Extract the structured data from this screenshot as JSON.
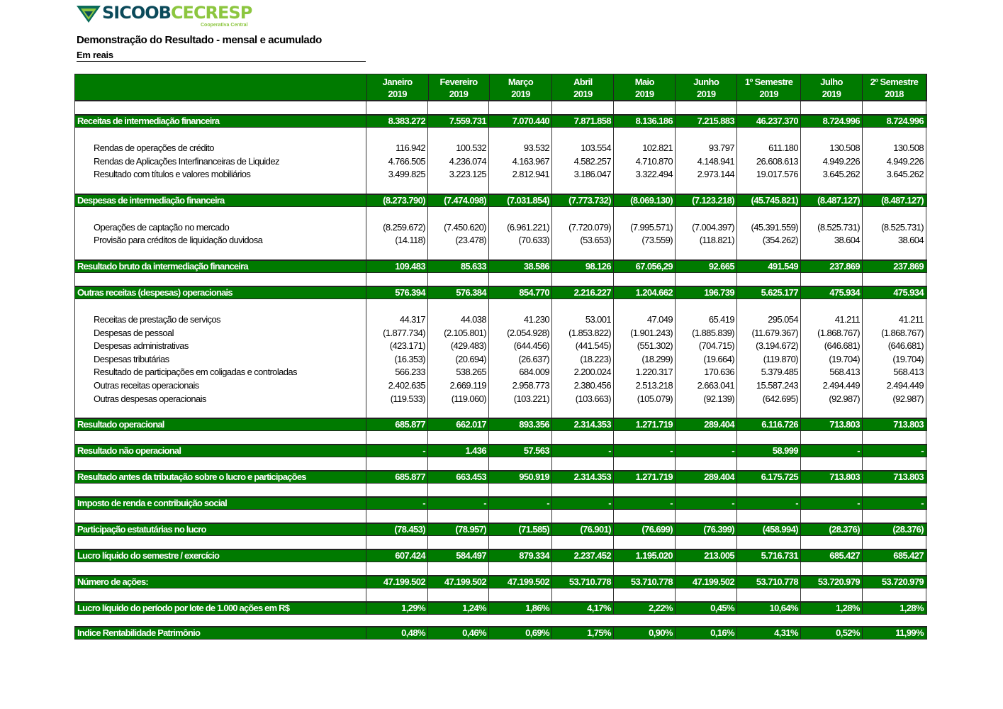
{
  "logo": {
    "brand_a": "SICOOB",
    "brand_b": "CECRESP",
    "tagline": "Cooperativa Central"
  },
  "title": "Demonstração do Resultado - mensal e acumulado",
  "subtitle": "Em  reais",
  "colors": {
    "green": "#007a00",
    "logo_dark": "#0b4a5a",
    "logo_light": "#8cc63f"
  },
  "columns": [
    {
      "l1": "Janeiro",
      "l2": "2019"
    },
    {
      "l1": "Fevereiro",
      "l2": "2019"
    },
    {
      "l1": "Março",
      "l2": "2019"
    },
    {
      "l1": "Abril",
      "l2": "2019"
    },
    {
      "l1": "Maio",
      "l2": "2019"
    },
    {
      "l1": "Junho",
      "l2": "2019"
    },
    {
      "l1": "1º Semestre",
      "l2": "2019"
    },
    {
      "l1": "Julho",
      "l2": "2019"
    },
    {
      "l1": "2º Semestre",
      "l2": "2018"
    }
  ],
  "rows": [
    {
      "type": "spacer"
    },
    {
      "type": "group",
      "label": "Receitas de intermediação financeira",
      "values": [
        "8.383.272",
        "7.559.731",
        "7.070.440",
        "7.871.858",
        "8.136.186",
        "7.215.883",
        "46.237.370",
        "8.724.996",
        "8.724.996"
      ]
    },
    {
      "type": "detail",
      "items": [
        {
          "label": "Rendas de operações de crédito",
          "values": [
            "116.942",
            "100.532",
            "93.532",
            "103.554",
            "102.821",
            "93.797",
            "611.180",
            "130.508",
            "130.508"
          ]
        },
        {
          "label": "Rendas de Aplicações Interfinanceiras de Liquidez",
          "values": [
            "4.766.505",
            "4.236.074",
            "4.163.967",
            "4.582.257",
            "4.710.870",
            "4.148.941",
            "26.608.613",
            "4.949.226",
            "4.949.226"
          ]
        },
        {
          "label": "Resultado com títulos e valores mobiliários",
          "values": [
            "3.499.825",
            "3.223.125",
            "2.812.941",
            "3.186.047",
            "3.322.494",
            "2.973.144",
            "19.017.576",
            "3.645.262",
            "3.645.262"
          ]
        }
      ]
    },
    {
      "type": "group",
      "label": "Despesas de intermediação financeira",
      "values": [
        "(8.273.790)",
        "(7.474.098)",
        "(7.031.854)",
        "(7.773.732)",
        "(8.069.130)",
        "(7.123.218)",
        "(45.745.821)",
        "(8.487.127)",
        "(8.487.127)"
      ]
    },
    {
      "type": "detail",
      "items": [
        {
          "label": "Operações de captação no mercado",
          "values": [
            "(8.259.672)",
            "(7.450.620)",
            "(6.961.221)",
            "(7.720.079)",
            "(7.995.571)",
            "(7.004.397)",
            "(45.391.559)",
            "(8.525.731)",
            "(8.525.731)"
          ]
        },
        {
          "label": "Provisão para créditos de liquidação duvidosa",
          "values": [
            "(14.118)",
            "(23.478)",
            "(70.633)",
            "(53.653)",
            "(73.559)",
            "(118.821)",
            "(354.262)",
            "38.604",
            "38.604"
          ]
        }
      ]
    },
    {
      "type": "group",
      "label": "Resultado bruto da intermediação financeira",
      "values": [
        "109.483",
        "85.633",
        "38.586",
        "98.126",
        "67.056,29",
        "92.665",
        "491.549",
        "237.869",
        "237.869"
      ]
    },
    {
      "type": "spacer"
    },
    {
      "type": "group",
      "label": "Outras receitas (despesas) operacionais",
      "values": [
        "576.394",
        "576.384",
        "854.770",
        "2.216.227",
        "1.204.662",
        "196.739",
        "5.625.177",
        "475.934",
        "475.934"
      ]
    },
    {
      "type": "detail",
      "items": [
        {
          "label": "Receitas de prestação de serviços",
          "values": [
            "44.317",
            "44.038",
            "41.230",
            "53.001",
            "47.049",
            "65.419",
            "295.054",
            "41.211",
            "41.211"
          ]
        },
        {
          "label": "Despesas de pessoal",
          "values": [
            "(1.877.734)",
            "(2.105.801)",
            "(2.054.928)",
            "(1.853.822)",
            "(1.901.243)",
            "(1.885.839)",
            "(11.679.367)",
            "(1.868.767)",
            "(1.868.767)"
          ]
        },
        {
          "label": "Despesas administrativas",
          "values": [
            "(423.171)",
            "(429.483)",
            "(644.456)",
            "(441.545)",
            "(551.302)",
            "(704.715)",
            "(3.194.672)",
            "(646.681)",
            "(646.681)"
          ]
        },
        {
          "label": "Despesas tributárias",
          "values": [
            "(16.353)",
            "(20.694)",
            "(26.637)",
            "(18.223)",
            "(18.299)",
            "(19.664)",
            "(119.870)",
            "(19.704)",
            "(19.704)"
          ]
        },
        {
          "label": "Resultado de participações em coligadas e controladas",
          "values": [
            "566.233",
            "538.265",
            "684.009",
            "2.200.024",
            "1.220.317",
            "170.636",
            "5.379.485",
            "568.413",
            "568.413"
          ]
        },
        {
          "label": "Outras receitas operacionais",
          "values": [
            "2.402.635",
            "2.669.119",
            "2.958.773",
            "2.380.456",
            "2.513.218",
            "2.663.041",
            "15.587.243",
            "2.494.449",
            "2.494.449"
          ]
        },
        {
          "label": "Outras despesas operacionais",
          "values": [
            "(119.533)",
            "(119.060)",
            "(103.221)",
            "(103.663)",
            "(105.079)",
            "(92.139)",
            "(642.695)",
            "(92.987)",
            "(92.987)"
          ]
        }
      ]
    },
    {
      "type": "group",
      "label": "Resultado operacional",
      "values": [
        "685.877",
        "662.017",
        "893.356",
        "2.314.353",
        "1.271.719",
        "289.404",
        "6.116.726",
        "713.803",
        "713.803"
      ]
    },
    {
      "type": "spacer"
    },
    {
      "type": "group",
      "label": "Resultado não operacional",
      "values": [
        "-",
        "1.436",
        "57.563",
        "-",
        "-",
        "-",
        "58.999",
        "-",
        "-"
      ]
    },
    {
      "type": "spacer"
    },
    {
      "type": "group",
      "label": "Resultado antes da tributação sobre o lucro e participações",
      "values": [
        "685.877",
        "663.453",
        "950.919",
        "2.314.353",
        "1.271.719",
        "289.404",
        "6.175.725",
        "713.803",
        "713.803"
      ]
    },
    {
      "type": "spacer"
    },
    {
      "type": "group",
      "label": "Imposto de renda e contribuição social",
      "values": [
        "-",
        "-",
        "-",
        "-",
        "-",
        "-",
        "-",
        "-",
        "-"
      ]
    },
    {
      "type": "spacer"
    },
    {
      "type": "group",
      "label": "Participação estatutárias no lucro",
      "values": [
        "(78.453)",
        "(78.957)",
        "(71.585)",
        "(76.901)",
        "(76.699)",
        "(76.399)",
        "(458.994)",
        "(28.376)",
        "(28.376)"
      ]
    },
    {
      "type": "spacer"
    },
    {
      "type": "group",
      "label": "Lucro líquido do semestre / exercício",
      "values": [
        "607.424",
        "584.497",
        "879.334",
        "2.237.452",
        "1.195.020",
        "213.005",
        "5.716.731",
        "685.427",
        "685.427"
      ]
    },
    {
      "type": "spacer"
    },
    {
      "type": "group",
      "label": "Número de ações:",
      "values": [
        "47.199.502",
        "47.199.502",
        "47.199.502",
        "53.710.778",
        "53.710.778",
        "47.199.502",
        "53.710.778",
        "53.720.979",
        "53.720.979"
      ]
    },
    {
      "type": "spacer"
    },
    {
      "type": "group",
      "label": "Lucro líquido do período por lote de 1.000 ações em R$",
      "values": [
        "1,29%",
        "1,24%",
        "1,86%",
        "4,17%",
        "2,22%",
        "0,45%",
        "10,64%",
        "1,28%",
        "1,28%"
      ]
    },
    {
      "type": "gap"
    },
    {
      "type": "group",
      "label": "Indice Rentabilidade Patrimônio",
      "values": [
        "0,48%",
        "0,46%",
        "0,69%",
        "1,75%",
        "0,90%",
        "0,16%",
        "4,31%",
        "0,52%",
        "11,99%"
      ]
    }
  ]
}
